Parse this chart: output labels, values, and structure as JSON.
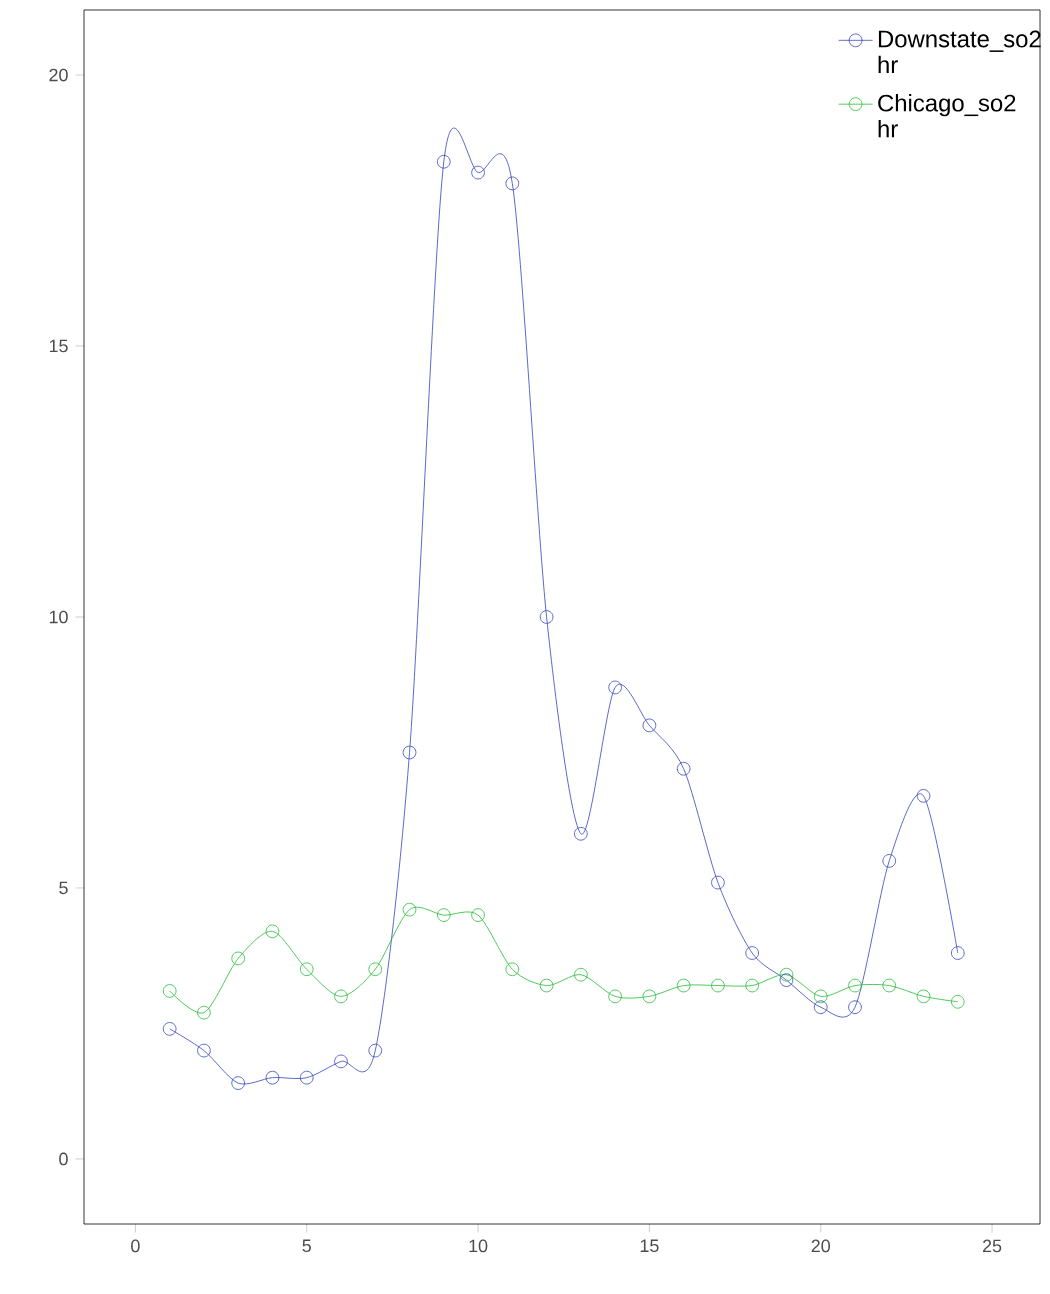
{
  "chart_data": {
    "type": "line",
    "x": [
      1,
      2,
      3,
      4,
      5,
      6,
      7,
      8,
      9,
      10,
      11,
      12,
      13,
      14,
      15,
      16,
      17,
      18,
      19,
      20,
      21,
      22,
      23,
      24
    ],
    "series": [
      {
        "name": "Downstate_so2 hr",
        "color": "#3344bb",
        "values": [
          2.4,
          2.0,
          1.4,
          1.5,
          1.5,
          1.8,
          2.0,
          7.5,
          18.4,
          18.2,
          18.0,
          10.0,
          6.0,
          8.7,
          8.0,
          7.2,
          5.1,
          3.8,
          3.3,
          2.8,
          2.8,
          5.5,
          6.7,
          3.8
        ]
      },
      {
        "name": "Chicago_so2 hr",
        "color": "#22bb33",
        "values": [
          3.1,
          2.7,
          3.7,
          4.2,
          3.5,
          3.0,
          3.5,
          4.6,
          4.5,
          4.5,
          3.5,
          3.2,
          3.4,
          3.0,
          3.0,
          3.2,
          3.2,
          3.2,
          3.4,
          3.0,
          3.2,
          3.2,
          3.0,
          2.9
        ]
      }
    ],
    "xlim": [
      -1.5,
      26.4
    ],
    "ylim": [
      -1.2,
      21.2
    ],
    "xticks": [
      0,
      5,
      10,
      15,
      20,
      25
    ],
    "yticks": [
      0,
      5,
      10,
      15,
      20
    ],
    "legend": "top right",
    "marker": "circle",
    "line_style": "solid",
    "grid": false
  }
}
